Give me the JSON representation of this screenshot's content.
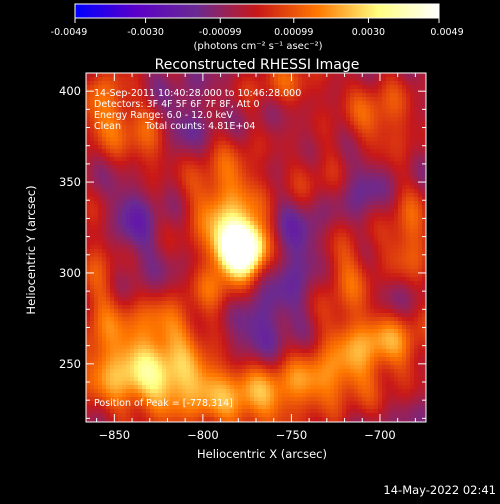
{
  "chart_data": {
    "type": "heatmap",
    "title": "Reconstructed RHESSI Image",
    "xlabel": "Heliocentric X (arcsec)",
    "ylabel": "Heliocentric Y (arcsec)",
    "xlim": [
      -866,
      -674
    ],
    "ylim": [
      218,
      410
    ],
    "xticks": [
      -850,
      -800,
      -750,
      -700
    ],
    "yticks": [
      250,
      300,
      350,
      400
    ],
    "colorbar": {
      "range": [
        -0.0049,
        0.0049
      ],
      "tick_values": [
        -0.0049,
        -0.003,
        -0.00099,
        0.00099,
        0.003,
        0.0049
      ],
      "tick_labels": [
        "-0.0049",
        "-0.0030",
        "-0.00099",
        "0.00099",
        "0.0030",
        "0.0049"
      ],
      "unit_label": "(photons cm⁻² s⁻¹ asec⁻²)",
      "colors": [
        "#0000ff",
        "#5a00c8",
        "#6a2a92",
        "#c81818",
        "#ff7800",
        "#ffff80",
        "#ffffff"
      ]
    },
    "annotations": {
      "time": "14-Sep-2011 10:40:28.000 to 10:46:28.000",
      "detectors": "Detectors: 3F 4F 5F 6F 7F 8F, Att 0",
      "energy": "Energy Range: 6.0 - 12.0 keV",
      "method": "Clean",
      "counts": "Total counts: 4.81E+04",
      "peak": "Position of Peak = [-778,314]"
    },
    "peak": {
      "x": -778,
      "y": 314,
      "value": 0.0049
    },
    "blobs": [
      {
        "x": -778,
        "y": 314,
        "sx": 9,
        "sy": 9,
        "a": 0.0075
      },
      {
        "x": -786,
        "y": 335,
        "sx": 16,
        "sy": 24,
        "a": 0.003
      },
      {
        "x": -790,
        "y": 290,
        "sx": 12,
        "sy": 10,
        "a": 0.0015
      },
      {
        "x": -855,
        "y": 390,
        "sx": 12,
        "sy": 16,
        "a": 0.0024
      },
      {
        "x": -832,
        "y": 370,
        "sx": 10,
        "sy": 14,
        "a": 0.0018
      },
      {
        "x": -858,
        "y": 300,
        "sx": 10,
        "sy": 30,
        "a": 0.0016
      },
      {
        "x": -842,
        "y": 248,
        "sx": 22,
        "sy": 18,
        "a": 0.0026
      },
      {
        "x": -812,
        "y": 240,
        "sx": 22,
        "sy": 14,
        "a": 0.0026
      },
      {
        "x": -820,
        "y": 272,
        "sx": 16,
        "sy": 10,
        "a": 0.0018
      },
      {
        "x": -772,
        "y": 228,
        "sx": 20,
        "sy": 14,
        "a": 0.0022
      },
      {
        "x": -730,
        "y": 240,
        "sx": 24,
        "sy": 12,
        "a": 0.0024
      },
      {
        "x": -700,
        "y": 262,
        "sx": 22,
        "sy": 12,
        "a": 0.0026
      },
      {
        "x": -720,
        "y": 300,
        "sx": 12,
        "sy": 20,
        "a": 0.002
      },
      {
        "x": -684,
        "y": 318,
        "sx": 10,
        "sy": 20,
        "a": 0.0022
      },
      {
        "x": -700,
        "y": 385,
        "sx": 16,
        "sy": 16,
        "a": 0.002
      },
      {
        "x": -752,
        "y": 404,
        "sx": 18,
        "sy": 10,
        "a": 0.0016
      },
      {
        "x": -738,
        "y": 352,
        "sx": 14,
        "sy": 14,
        "a": 0.0014
      },
      {
        "x": -810,
        "y": 382,
        "sx": 10,
        "sy": 10,
        "a": -0.001
      },
      {
        "x": -842,
        "y": 330,
        "sx": 10,
        "sy": 18,
        "a": -0.0012
      },
      {
        "x": -770,
        "y": 270,
        "sx": 14,
        "sy": 14,
        "a": -0.0012
      },
      {
        "x": -745,
        "y": 318,
        "sx": 14,
        "sy": 24,
        "a": -0.0012
      },
      {
        "x": -710,
        "y": 348,
        "sx": 10,
        "sy": 16,
        "a": -0.001
      },
      {
        "x": -690,
        "y": 290,
        "sx": 8,
        "sy": 10,
        "a": -0.0008
      }
    ]
  },
  "footer": {
    "date": "14-May-2022 02:41"
  }
}
